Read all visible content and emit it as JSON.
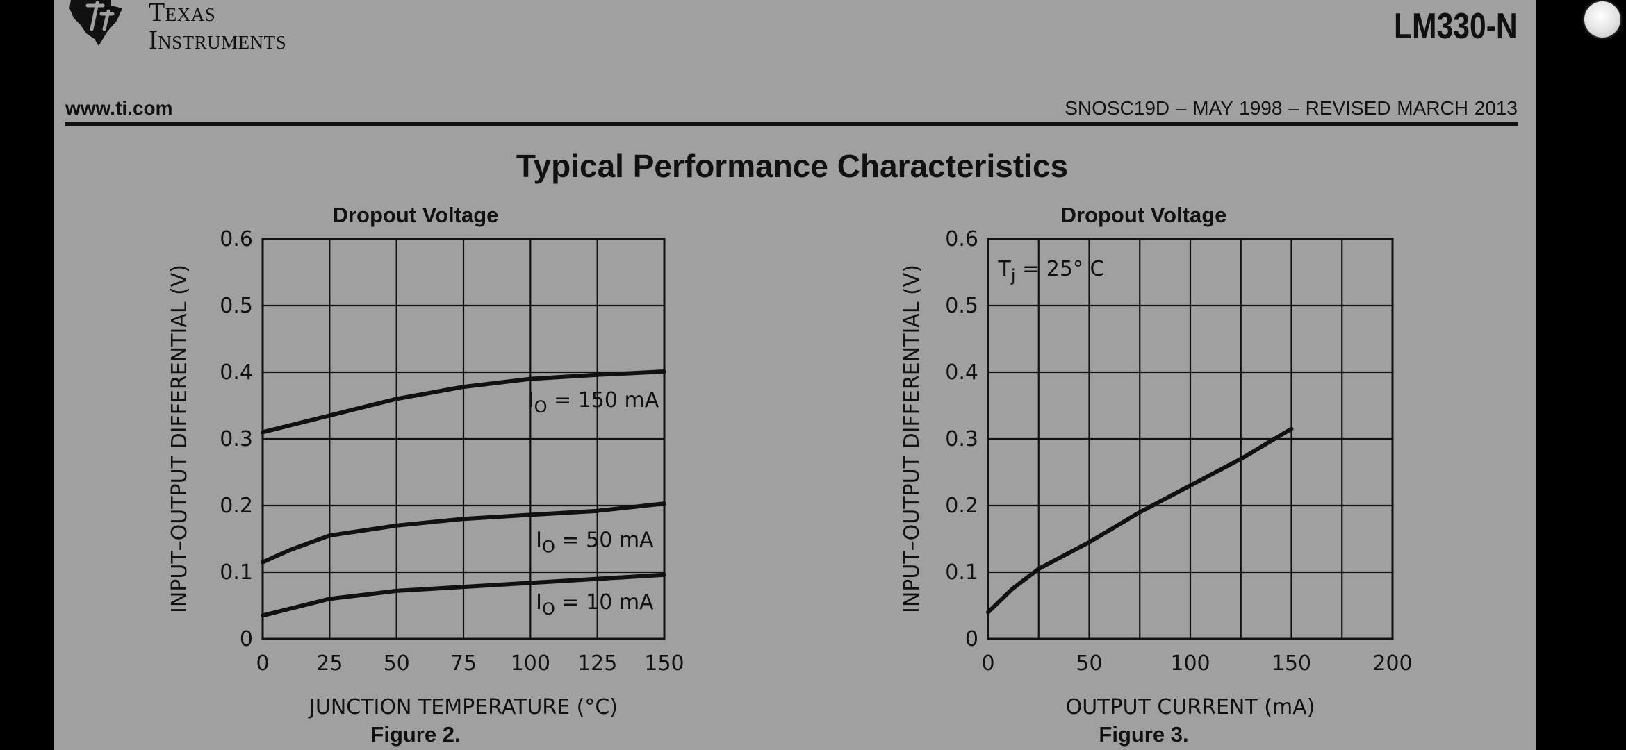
{
  "header": {
    "logo_text": [
      "Texas",
      "Instruments"
    ],
    "part_number": "LM330-N",
    "website": "www.ti.com",
    "document_ref": "SNOSC19D – MAY 1998 – REVISED MARCH 2013"
  },
  "section_title": "Typical Performance Characteristics",
  "charts": [
    {
      "title": "Dropout Voltage",
      "caption": "Figure 2.",
      "chart_data": {
        "type": "line",
        "title": "Dropout Voltage",
        "xlabel": "JUNCTION TEMPERATURE (°C)",
        "ylabel": "INPUT–OUTPUT DIFFERENTIAL (V)",
        "xlim": [
          0,
          150
        ],
        "ylim": [
          0,
          0.6
        ],
        "x_ticks": [
          0,
          25,
          50,
          75,
          100,
          125,
          150
        ],
        "y_ticks": [
          0,
          0.1,
          0.2,
          0.3,
          0.4,
          0.5,
          0.6
        ],
        "x_tick_labels": [
          "0",
          "25",
          "50",
          "75",
          "100",
          "125",
          "150"
        ],
        "y_tick_labels": [
          "0",
          "0.1",
          "0.2",
          "0.3",
          "0.4",
          "0.5",
          "0.6"
        ],
        "grid": true,
        "series": [
          {
            "label": [
              "I",
              "O",
              " = 150 mA"
            ],
            "x": [
              0,
              25,
              50,
              75,
              100,
              125,
              150
            ],
            "y": [
              0.31,
              0.335,
              0.36,
              0.378,
              0.39,
              0.396,
              0.401
            ]
          },
          {
            "label": [
              "I",
              "O",
              " = 50 mA"
            ],
            "x": [
              0,
              10,
              25,
              50,
              75,
              100,
              125,
              150
            ],
            "y": [
              0.115,
              0.133,
              0.155,
              0.17,
              0.18,
              0.186,
              0.192,
              0.203
            ]
          },
          {
            "label": [
              "I",
              "O",
              " = 10 mA"
            ],
            "x": [
              0,
              25,
              50,
              75,
              100,
              125,
              150
            ],
            "y": [
              0.035,
              0.06,
              0.072,
              0.078,
              0.084,
              0.09,
              0.096
            ]
          }
        ]
      }
    },
    {
      "title": "Dropout Voltage",
      "caption": "Figure 3.",
      "chart_data": {
        "type": "line",
        "title": "Dropout Voltage",
        "xlabel": "OUTPUT CURRENT (mA)",
        "ylabel": "INPUT–OUTPUT DIFFERENTIAL (V)",
        "xlim": [
          0,
          200
        ],
        "ylim": [
          0,
          0.6
        ],
        "x_ticks": [
          0,
          50,
          100,
          150,
          200
        ],
        "y_ticks": [
          0,
          0.1,
          0.2,
          0.3,
          0.4,
          0.5,
          0.6
        ],
        "x_tick_labels": [
          "0",
          "50",
          "100",
          "150",
          "200"
        ],
        "y_tick_labels": [
          "0",
          "0.1",
          "0.2",
          "0.3",
          "0.4",
          "0.5",
          "0.6"
        ],
        "minor_x_gridlines": [
          25,
          75,
          125,
          175
        ],
        "grid": true,
        "annotation": [
          "T",
          "j",
          " = 25° C"
        ],
        "series": [
          {
            "x": [
              0,
              12,
              25,
              50,
              75,
              100,
              125,
              150
            ],
            "y": [
              0.04,
              0.075,
              0.105,
              0.145,
              0.19,
              0.23,
              0.27,
              0.315
            ]
          }
        ]
      }
    }
  ]
}
